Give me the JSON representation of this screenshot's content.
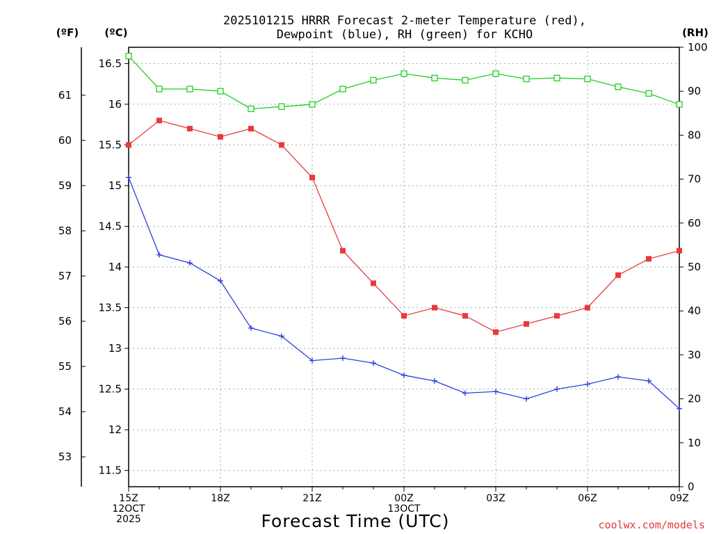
{
  "chart_data": {
    "type": "line",
    "title_lines": [
      "2025101215 HRRR Forecast 2-meter Temperature (red),",
      "Dewpoint (blue), RH (green) for KCHO"
    ],
    "xlabel": "Forecast Time (UTC)",
    "credit": "coolwx.com/models",
    "unit_f": "(ºF)",
    "unit_c": "(ºC)",
    "unit_rh": "(RH)",
    "x_hours": [
      0,
      1,
      2,
      3,
      4,
      5,
      6,
      7,
      8,
      9,
      10,
      11,
      12,
      13,
      14,
      15,
      16,
      17,
      18
    ],
    "x_ticks": [
      {
        "hour": 0,
        "lines": [
          "15Z",
          "12OCT",
          "2025"
        ]
      },
      {
        "hour": 3,
        "lines": [
          "18Z"
        ]
      },
      {
        "hour": 6,
        "lines": [
          "21Z"
        ]
      },
      {
        "hour": 9,
        "lines": [
          "00Z",
          "13OCT"
        ]
      },
      {
        "hour": 12,
        "lines": [
          "03Z"
        ]
      },
      {
        "hour": 15,
        "lines": [
          "06Z"
        ]
      },
      {
        "hour": 18,
        "lines": [
          "09Z"
        ]
      }
    ],
    "c_axis": {
      "range": [
        11.3,
        16.7
      ],
      "ticks": [
        11.5,
        12,
        12.5,
        13,
        13.5,
        14,
        14.5,
        15,
        15.5,
        16,
        16.5
      ],
      "labels": [
        "11.5",
        "12",
        "12.5",
        "13",
        "13.5",
        "14",
        "14.5",
        "15",
        "15.5",
        "16",
        "16.5"
      ]
    },
    "f_axis": {
      "ticks": [
        53,
        54,
        55,
        56,
        57,
        58,
        59,
        60,
        61
      ],
      "labels": [
        "53",
        "54",
        "55",
        "56",
        "57",
        "58",
        "59",
        "60",
        "61"
      ]
    },
    "rh_axis": {
      "range": [
        0,
        100
      ],
      "ticks": [
        0,
        10,
        20,
        30,
        40,
        50,
        60,
        70,
        80,
        90,
        100
      ],
      "labels": [
        "0",
        "10",
        "20",
        "30",
        "40",
        "50",
        "60",
        "70",
        "80",
        "90",
        "100"
      ]
    },
    "series": [
      {
        "name": "Temperature",
        "axis": "c",
        "color": "#e83a3a",
        "marker": "filled-square",
        "values": [
          15.5,
          15.8,
          15.7,
          15.6,
          15.7,
          15.5,
          15.1,
          14.2,
          13.8,
          13.4,
          13.5,
          13.4,
          13.2,
          13.3,
          13.4,
          13.5,
          13.9,
          14.1,
          14.2
        ]
      },
      {
        "name": "Dewpoint",
        "axis": "c",
        "color": "#2a3fe0",
        "marker": "plus",
        "values": [
          15.1,
          14.15,
          14.05,
          13.83,
          13.25,
          13.15,
          12.85,
          12.88,
          12.82,
          12.67,
          12.6,
          12.45,
          12.47,
          12.38,
          12.5,
          12.56,
          12.65,
          12.6,
          12.26
        ]
      },
      {
        "name": "RH",
        "axis": "rh",
        "color": "#22cc22",
        "marker": "open-square",
        "values": [
          98,
          90.5,
          90.5,
          90,
          86,
          86.5,
          87,
          90.5,
          92.5,
          94,
          93,
          92.5,
          94,
          92.8,
          93,
          92.8,
          91,
          89.5,
          87
        ]
      }
    ]
  }
}
